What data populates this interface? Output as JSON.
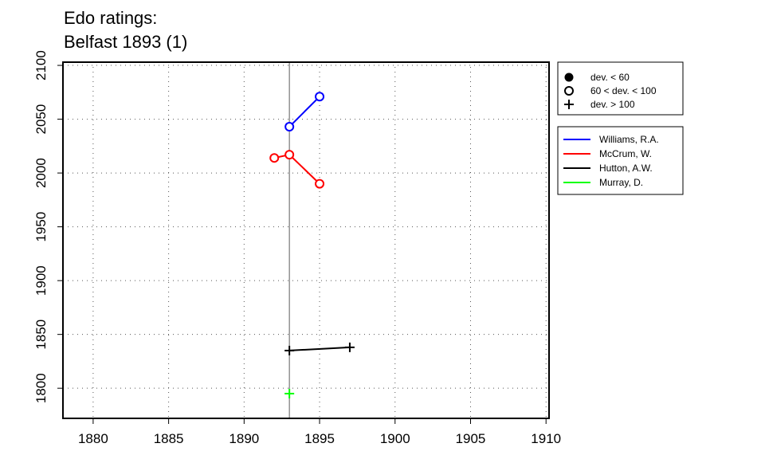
{
  "chart_data": {
    "type": "line",
    "title_lines": [
      "Edo ratings:",
      "Belfast 1893 (1)"
    ],
    "xlabel": "",
    "ylabel": "",
    "xlim": [
      1878,
      1910.2
    ],
    "ylim": [
      1772,
      2103
    ],
    "xticks": [
      1880,
      1885,
      1890,
      1895,
      1900,
      1905,
      1910
    ],
    "yticks": [
      1800,
      1850,
      1900,
      1950,
      2000,
      2050,
      2100
    ],
    "grid": true,
    "event_year": 1893,
    "symbol_legend": [
      {
        "label": "dev. < 60",
        "marker": "filled-circle"
      },
      {
        "label": "60 < dev. < 100",
        "marker": "open-circle"
      },
      {
        "label": "dev. > 100",
        "marker": "plus"
      }
    ],
    "series": [
      {
        "name": "Williams, R.A.",
        "color": "#0000ff",
        "points": [
          {
            "x": 1893,
            "y": 2043,
            "marker": "open-circle"
          },
          {
            "x": 1895,
            "y": 2071,
            "marker": "open-circle"
          }
        ]
      },
      {
        "name": "McCrum, W.",
        "color": "#ff0000",
        "points": [
          {
            "x": 1892,
            "y": 2014,
            "marker": "open-circle"
          },
          {
            "x": 1893,
            "y": 2017,
            "marker": "open-circle"
          },
          {
            "x": 1895,
            "y": 1990,
            "marker": "open-circle"
          }
        ]
      },
      {
        "name": "Hutton, A.W.",
        "color": "#000000",
        "points": [
          {
            "x": 1893,
            "y": 1835,
            "marker": "plus"
          },
          {
            "x": 1897,
            "y": 1838,
            "marker": "plus"
          }
        ]
      },
      {
        "name": "Murray, D.",
        "color": "#00ff00",
        "points": [
          {
            "x": 1893,
            "y": 1795,
            "marker": "plus"
          }
        ]
      }
    ]
  }
}
